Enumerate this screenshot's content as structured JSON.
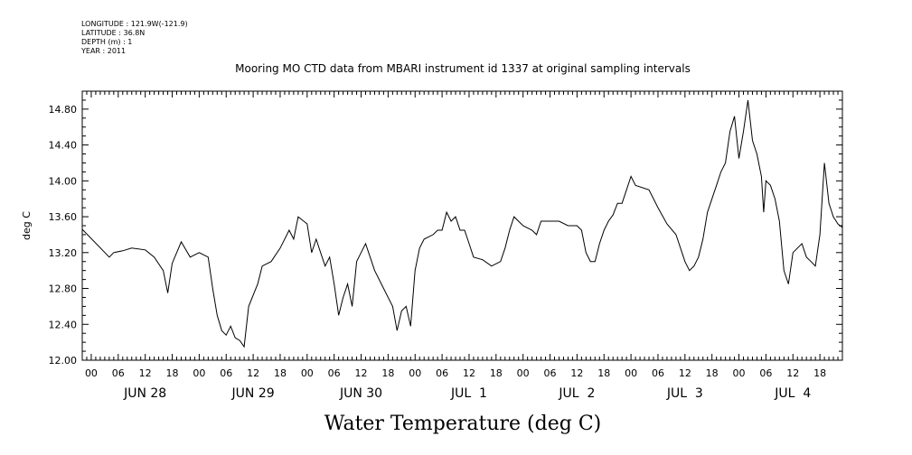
{
  "metadata": {
    "longitude": "LONGITUDE : 121.9W(-121.9)",
    "latitude": "LATITUDE : 36.8N",
    "depth": "DEPTH (m) : 1",
    "year": "YEAR : 2011"
  },
  "chart_data": {
    "type": "line",
    "title": "Mooring MO CTD data from MBARI instrument id 1337 at original sampling intervals",
    "xlabel": "Water Temperature (deg C)",
    "ylabel": "deg C",
    "ylim": [
      12.0,
      15.0
    ],
    "y_ticks": [
      "12.00",
      "12.40",
      "12.80",
      "13.20",
      "13.60",
      "14.00",
      "14.40",
      "14.80"
    ],
    "x_start": "2011-06-27T22:00",
    "x_end": "2011-07-04T23:00",
    "hour_tick_labels": [
      "00",
      "06",
      "12",
      "18"
    ],
    "day_labels": [
      "JUN 28",
      "JUN 29",
      "JUN 30",
      "JUL  1",
      "JUL  2",
      "JUL  3",
      "JUL  4"
    ],
    "grid": false,
    "series": [
      {
        "values": [
          [
            "2011-06-27T22:00",
            13.46
          ],
          [
            "2011-06-28T04:00",
            13.15
          ],
          [
            "2011-06-28T05:00",
            13.2
          ],
          [
            "2011-06-28T07:00",
            13.22
          ],
          [
            "2011-06-28T09:00",
            13.25
          ],
          [
            "2011-06-28T12:00",
            13.23
          ],
          [
            "2011-06-28T14:00",
            13.15
          ],
          [
            "2011-06-28T16:00",
            13.0
          ],
          [
            "2011-06-28T17:00",
            12.75
          ],
          [
            "2011-06-28T18:00",
            13.08
          ],
          [
            "2011-06-28T19:00",
            13.2
          ],
          [
            "2011-06-28T20:00",
            13.32
          ],
          [
            "2011-06-28T22:00",
            13.15
          ],
          [
            "2011-06-29T00:00",
            13.2
          ],
          [
            "2011-06-29T02:00",
            13.15
          ],
          [
            "2011-06-29T03:00",
            12.8
          ],
          [
            "2011-06-29T04:00",
            12.5
          ],
          [
            "2011-06-29T05:00",
            12.33
          ],
          [
            "2011-06-29T06:00",
            12.28
          ],
          [
            "2011-06-29T07:00",
            12.38
          ],
          [
            "2011-06-29T08:00",
            12.25
          ],
          [
            "2011-06-29T09:00",
            12.22
          ],
          [
            "2011-06-29T10:00",
            12.15
          ],
          [
            "2011-06-29T11:00",
            12.6
          ],
          [
            "2011-06-29T13:00",
            12.85
          ],
          [
            "2011-06-29T14:00",
            13.05
          ],
          [
            "2011-06-29T16:00",
            13.1
          ],
          [
            "2011-06-29T18:00",
            13.25
          ],
          [
            "2011-06-29T20:00",
            13.45
          ],
          [
            "2011-06-29T21:00",
            13.35
          ],
          [
            "2011-06-29T22:00",
            13.6
          ],
          [
            "2011-06-30T00:00",
            13.52
          ],
          [
            "2011-06-30T01:00",
            13.2
          ],
          [
            "2011-06-30T02:00",
            13.35
          ],
          [
            "2011-06-30T03:00",
            13.2
          ],
          [
            "2011-06-30T04:00",
            13.05
          ],
          [
            "2011-06-30T05:00",
            13.15
          ],
          [
            "2011-06-30T06:00",
            12.85
          ],
          [
            "2011-06-30T07:00",
            12.5
          ],
          [
            "2011-06-30T08:00",
            12.7
          ],
          [
            "2011-06-30T09:00",
            12.85
          ],
          [
            "2011-06-30T10:00",
            12.6
          ],
          [
            "2011-06-30T11:00",
            13.1
          ],
          [
            "2011-06-30T12:00",
            13.2
          ],
          [
            "2011-06-30T13:00",
            13.3
          ],
          [
            "2011-06-30T14:00",
            13.15
          ],
          [
            "2011-06-30T15:00",
            13.0
          ],
          [
            "2011-06-30T17:00",
            12.8
          ],
          [
            "2011-06-30T19:00",
            12.6
          ],
          [
            "2011-06-30T20:00",
            12.33
          ],
          [
            "2011-06-30T21:00",
            12.55
          ],
          [
            "2011-06-30T22:00",
            12.6
          ],
          [
            "2011-06-30T23:00",
            12.38
          ],
          [
            "2011-07-01T00:00",
            13.0
          ],
          [
            "2011-07-01T01:00",
            13.25
          ],
          [
            "2011-07-01T02:00",
            13.35
          ],
          [
            "2011-07-01T04:00",
            13.4
          ],
          [
            "2011-07-01T05:00",
            13.45
          ],
          [
            "2011-07-01T06:00",
            13.45
          ],
          [
            "2011-07-01T07:00",
            13.65
          ],
          [
            "2011-07-01T08:00",
            13.55
          ],
          [
            "2011-07-01T09:00",
            13.6
          ],
          [
            "2011-07-01T10:00",
            13.45
          ],
          [
            "2011-07-01T11:00",
            13.45
          ],
          [
            "2011-07-01T12:00",
            13.3
          ],
          [
            "2011-07-01T13:00",
            13.15
          ],
          [
            "2011-07-01T15:00",
            13.12
          ],
          [
            "2011-07-01T17:00",
            13.05
          ],
          [
            "2011-07-01T19:00",
            13.1
          ],
          [
            "2011-07-01T20:00",
            13.25
          ],
          [
            "2011-07-01T21:00",
            13.45
          ],
          [
            "2011-07-01T22:00",
            13.6
          ],
          [
            "2011-07-02T00:00",
            13.5
          ],
          [
            "2011-07-02T02:00",
            13.45
          ],
          [
            "2011-07-02T03:00",
            13.4
          ],
          [
            "2011-07-02T04:00",
            13.55
          ],
          [
            "2011-07-02T06:00",
            13.55
          ],
          [
            "2011-07-02T08:00",
            13.55
          ],
          [
            "2011-07-02T10:00",
            13.5
          ],
          [
            "2011-07-02T12:00",
            13.5
          ],
          [
            "2011-07-02T13:00",
            13.45
          ],
          [
            "2011-07-02T14:00",
            13.2
          ],
          [
            "2011-07-02T15:00",
            13.1
          ],
          [
            "2011-07-02T16:00",
            13.1
          ],
          [
            "2011-07-02T17:00",
            13.3
          ],
          [
            "2011-07-02T18:00",
            13.45
          ],
          [
            "2011-07-02T19:00",
            13.55
          ],
          [
            "2011-07-02T20:00",
            13.62
          ],
          [
            "2011-07-02T21:00",
            13.75
          ],
          [
            "2011-07-02T22:00",
            13.75
          ],
          [
            "2011-07-03T00:00",
            14.05
          ],
          [
            "2011-07-03T01:00",
            13.95
          ],
          [
            "2011-07-03T04:00",
            13.9
          ],
          [
            "2011-07-03T06:00",
            13.7
          ],
          [
            "2011-07-03T08:00",
            13.52
          ],
          [
            "2011-07-03T10:00",
            13.4
          ],
          [
            "2011-07-03T12:00",
            13.1
          ],
          [
            "2011-07-03T13:00",
            13.0
          ],
          [
            "2011-07-03T14:00",
            13.05
          ],
          [
            "2011-07-03T15:00",
            13.15
          ],
          [
            "2011-07-03T16:00",
            13.35
          ],
          [
            "2011-07-03T17:00",
            13.65
          ],
          [
            "2011-07-03T18:00",
            13.8
          ],
          [
            "2011-07-03T19:00",
            13.95
          ],
          [
            "2011-07-03T20:00",
            14.1
          ],
          [
            "2011-07-03T21:00",
            14.2
          ],
          [
            "2011-07-03T22:00",
            14.55
          ],
          [
            "2011-07-03T23:00",
            14.72
          ],
          [
            "2011-07-04T00:00",
            14.25
          ],
          [
            "2011-07-04T01:00",
            14.55
          ],
          [
            "2011-07-04T02:00",
            14.9
          ],
          [
            "2011-07-04T03:00",
            14.45
          ],
          [
            "2011-07-04T04:00",
            14.3
          ],
          [
            "2011-07-04T05:00",
            14.05
          ],
          [
            "2011-07-04T05:30",
            13.65
          ],
          [
            "2011-07-04T06:00",
            14.0
          ],
          [
            "2011-07-04T07:00",
            13.95
          ],
          [
            "2011-07-04T08:00",
            13.8
          ],
          [
            "2011-07-04T09:00",
            13.55
          ],
          [
            "2011-07-04T10:00",
            13.0
          ],
          [
            "2011-07-04T11:00",
            12.85
          ],
          [
            "2011-07-04T12:00",
            13.2
          ],
          [
            "2011-07-04T14:00",
            13.3
          ],
          [
            "2011-07-04T15:00",
            13.15
          ],
          [
            "2011-07-04T16:00",
            13.1
          ],
          [
            "2011-07-04T17:00",
            13.05
          ],
          [
            "2011-07-04T18:00",
            13.4
          ],
          [
            "2011-07-04T19:00",
            14.2
          ],
          [
            "2011-07-04T20:00",
            13.75
          ],
          [
            "2011-07-04T21:00",
            13.6
          ],
          [
            "2011-07-04T22:00",
            13.52
          ],
          [
            "2011-07-04T23:00",
            13.48
          ]
        ]
      }
    ]
  }
}
